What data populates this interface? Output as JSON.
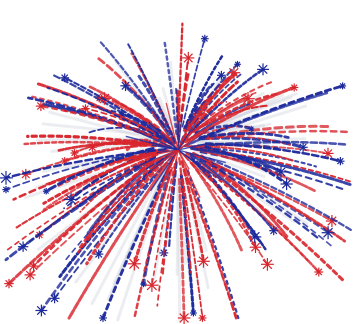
{
  "image": {
    "palette": {
      "background": "#ffffff",
      "red": "#d8262e",
      "blue": "#1d2a9c",
      "grey": "#c9ccd6"
    },
    "burst_shape": "radial firework burst of dashed streaks with small starbursts at the tips"
  }
}
